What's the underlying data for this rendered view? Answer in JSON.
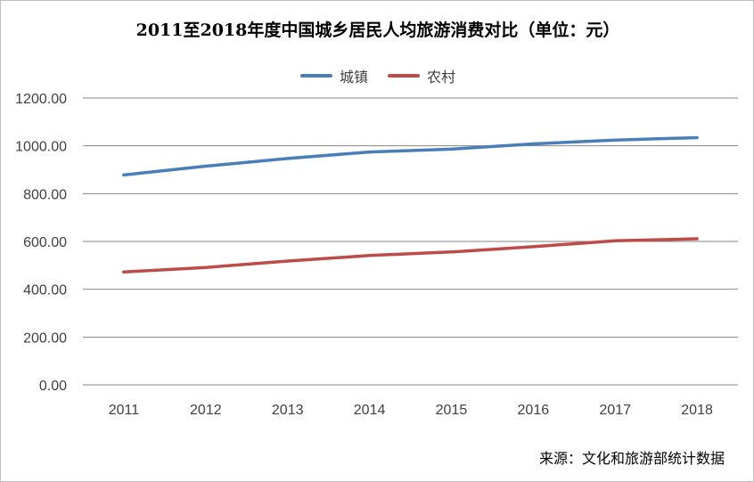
{
  "chart_data": {
    "type": "line",
    "title": "2011至2018年度中国城乡居民人均旅游消费对比（单位：元）",
    "categories": [
      "2011",
      "2012",
      "2013",
      "2014",
      "2015",
      "2016",
      "2017",
      "2018"
    ],
    "y_tick_labels": [
      "0.00",
      "200.00",
      "400.00",
      "600.00",
      "800.00",
      "1000.00",
      "1200.00"
    ],
    "ylim": [
      0,
      1200
    ],
    "grid": true,
    "legend_position": "top-center",
    "series": [
      {
        "name": "城镇",
        "color": "#4a7ebb",
        "values": [
          878,
          915,
          947,
          974,
          986,
          1008,
          1024,
          1034
        ]
      },
      {
        "name": "农村",
        "color": "#be4b48",
        "values": [
          472,
          491,
          518,
          541,
          556,
          578,
          603,
          611
        ]
      }
    ],
    "source_note": "来源：文化和旅游部统计数据"
  }
}
